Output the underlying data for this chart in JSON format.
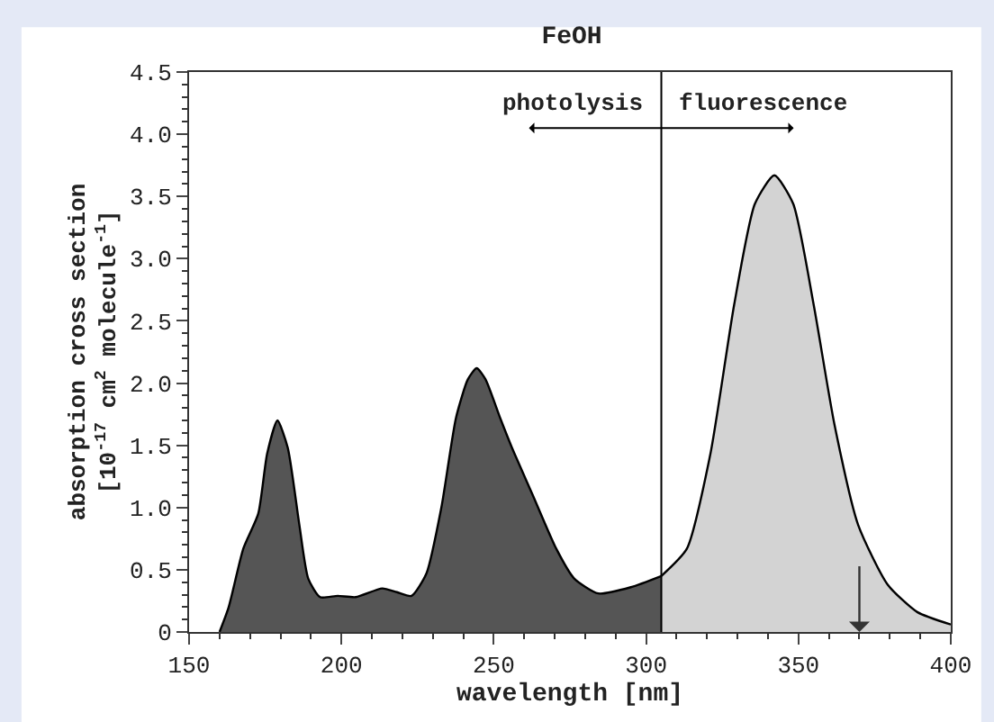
{
  "chart_data": {
    "type": "area",
    "title": "FeOH",
    "xlabel": "wavelength [nm]",
    "ylabel": "absorption cross section\n[10$^{-17}$ cm$^{2}$ molecule$^{-1}$]",
    "series": [
      {
        "color": "#555555",
        "x": [
          160,
          163,
          167.8,
          172.7,
          175.6,
          179,
          182.4,
          186.2,
          189.1,
          193,
          198.8,
          204.7,
          213.4,
          218.2,
          223,
          227.9,
          232.8,
          237.6,
          241.5,
          244.4,
          247.3,
          252.1,
          256,
          262.8,
          270.5,
          276.4,
          284.3,
          295,
          305
        ],
        "values": [
          0,
          0.2,
          0.67,
          0.95,
          1.43,
          1.7,
          1.48,
          0.86,
          0.43,
          0.28,
          0.29,
          0.28,
          0.35,
          0.32,
          0.29,
          0.47,
          1.0,
          1.72,
          2.03,
          2.12,
          2.03,
          1.72,
          1.48,
          1.1,
          0.67,
          0.43,
          0.31,
          0.36,
          0.45
        ]
      },
      {
        "color": "#d3d3d3",
        "x": [
          305,
          313.4,
          321.1,
          328.9,
          335.7,
          342.1,
          348.3,
          355,
          361.8,
          369.6,
          379.3,
          389,
          400
        ],
        "values": [
          0.45,
          0.67,
          1.43,
          2.63,
          3.44,
          3.67,
          3.44,
          2.63,
          1.67,
          0.86,
          0.38,
          0.16,
          0.06
        ]
      }
    ],
    "xlim": [
      150,
      400
    ],
    "xticks": [
      150,
      200,
      250,
      300,
      350,
      400
    ],
    "ylim": [
      0,
      4.5
    ],
    "yticks": [
      0,
      {
        "value": 0.5,
        "label": "0.5"
      },
      {
        "value": 1,
        "label": "1.0"
      },
      {
        "value": 1.5,
        "label": "1.5"
      },
      {
        "value": 2,
        "label": "2.0"
      },
      {
        "value": 2.5,
        "label": "2.5"
      },
      {
        "value": 3,
        "label": "3.0"
      },
      {
        "value": 3.5,
        "label": "3.5"
      },
      {
        "value": 4,
        "label": "4.0"
      },
      {
        "value": 4.5,
        "label": "4.5"
      }
    ],
    "ref_lines": [
      {
        "axis": "x",
        "value": 305,
        "color": "#000000"
      }
    ],
    "annotations": [
      "photolysis",
      "fluorescence"
    ]
  }
}
